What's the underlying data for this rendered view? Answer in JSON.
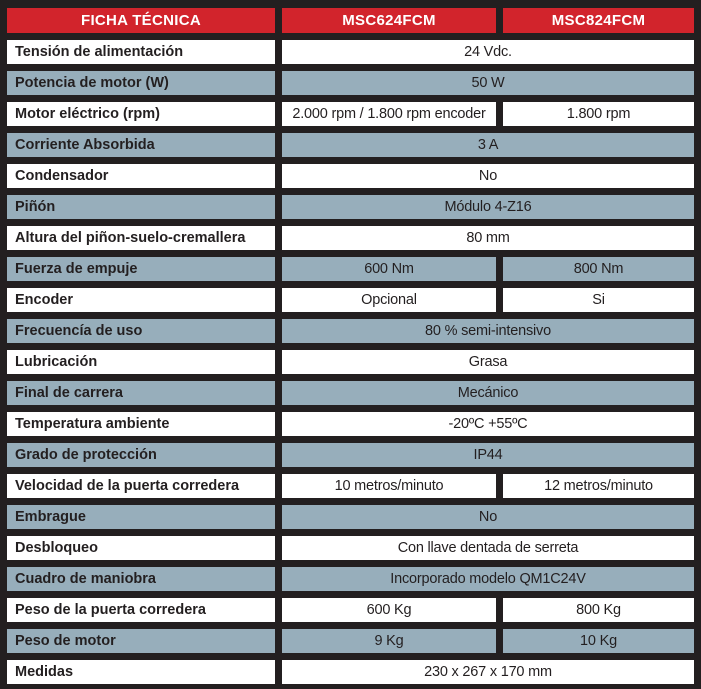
{
  "title": "FICHA TÉCNICA",
  "colors": {
    "header_red": "#D2242C",
    "row_blue": "#97AEBB",
    "row_white": "#FFFFFF",
    "border_black": "#231F20",
    "text_dark": "#231F20",
    "header_text": "#FFFFFF"
  },
  "header": {
    "col1": "FICHA TÉCNICA",
    "col2": "MSC624FCM",
    "col3": "MSC824FCM"
  },
  "rows": [
    {
      "label": "Tensión de alimentación",
      "values": [
        "24 Vdc."
      ]
    },
    {
      "label": "Potencia de motor (W)",
      "values": [
        "50 W"
      ]
    },
    {
      "label": "Motor eléctrico (rpm)",
      "values": [
        "2.000 rpm / 1.800 rpm encoder",
        "1.800 rpm"
      ]
    },
    {
      "label": "Corriente Absorbida",
      "values": [
        "3 A"
      ]
    },
    {
      "label": "Condensador",
      "values": [
        "No"
      ]
    },
    {
      "label": "Piñón",
      "values": [
        "Módulo 4-Z16"
      ]
    },
    {
      "label": "Altura del piñon-suelo-cremallera",
      "values": [
        "80 mm"
      ]
    },
    {
      "label": "Fuerza de empuje",
      "values": [
        "600 Nm",
        "800 Nm"
      ]
    },
    {
      "label": "Encoder",
      "values": [
        "Opcional",
        "Si"
      ]
    },
    {
      "label": "Frecuencía de uso",
      "values": [
        "80 % semi-intensivo"
      ]
    },
    {
      "label": "Lubricación",
      "values": [
        "Grasa"
      ]
    },
    {
      "label": "Final de carrera",
      "values": [
        "Mecánico"
      ]
    },
    {
      "label": "Temperatura ambiente",
      "values": [
        "-20ºC +55ºC"
      ]
    },
    {
      "label": "Grado de protección",
      "values": [
        "IP44"
      ]
    },
    {
      "label": "Velocidad de la puerta corredera",
      "values": [
        "10 metros/minuto",
        "12 metros/minuto"
      ]
    },
    {
      "label": "Embrague",
      "values": [
        "No"
      ]
    },
    {
      "label": "Desbloqueo",
      "values": [
        "Con llave dentada de serreta"
      ]
    },
    {
      "label": "Cuadro de maniobra",
      "values": [
        "Incorporado modelo QM1C24V"
      ]
    },
    {
      "label": "Peso de la puerta corredera",
      "values": [
        "600 Kg",
        "800 Kg"
      ]
    },
    {
      "label": "Peso de motor",
      "values": [
        "9 Kg",
        "10 Kg"
      ]
    },
    {
      "label": "Medidas",
      "values": [
        "230 x 267 x 170 mm"
      ]
    }
  ]
}
